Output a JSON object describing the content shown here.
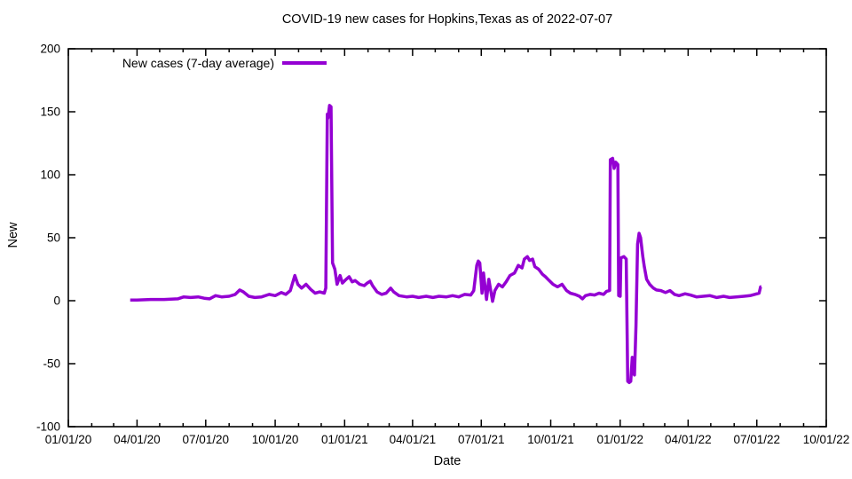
{
  "chart_data": {
    "type": "line",
    "title": "COVID-19 new cases for Hopkins,Texas as of 2022-07-07",
    "xlabel": "Date",
    "ylabel": "New",
    "ylim": [
      -100,
      200
    ],
    "xlim": [
      "01/01/20",
      "10/01/22"
    ],
    "yticks": [
      -100,
      -50,
      0,
      50,
      100,
      150,
      200
    ],
    "xticks": [
      "01/01/20",
      "04/01/20",
      "07/01/20",
      "10/01/20",
      "01/01/21",
      "04/01/21",
      "07/01/21",
      "10/01/21",
      "01/01/22",
      "04/01/22",
      "07/01/22",
      "10/01/22"
    ],
    "grid": false,
    "legend_position": "top-left-inside",
    "line_color": "#9400d3",
    "axis_color": "#000000",
    "background_color": "#ffffff",
    "series": [
      {
        "name": "New cases (7-day average)",
        "points": [
          [
            "2020-03-23",
            0.5
          ],
          [
            "2020-04-01",
            0.5
          ],
          [
            "2020-04-19",
            1
          ],
          [
            "2020-05-07",
            1
          ],
          [
            "2020-05-25",
            1.5
          ],
          [
            "2020-06-02",
            3
          ],
          [
            "2020-06-11",
            2.5
          ],
          [
            "2020-06-21",
            3
          ],
          [
            "2020-06-29",
            2
          ],
          [
            "2020-07-06",
            1.5
          ],
          [
            "2020-07-14",
            4
          ],
          [
            "2020-07-22",
            3
          ],
          [
            "2020-08-01",
            3.5
          ],
          [
            "2020-08-09",
            5
          ],
          [
            "2020-08-15",
            8.5
          ],
          [
            "2020-08-20",
            7
          ],
          [
            "2020-08-27",
            3.5
          ],
          [
            "2020-09-04",
            2.5
          ],
          [
            "2020-09-13",
            3
          ],
          [
            "2020-09-23",
            5
          ],
          [
            "2020-10-01",
            4
          ],
          [
            "2020-10-09",
            6.5
          ],
          [
            "2020-10-15",
            5
          ],
          [
            "2020-10-21",
            8
          ],
          [
            "2020-10-27",
            20
          ],
          [
            "2020-10-31",
            13
          ],
          [
            "2020-11-05",
            10
          ],
          [
            "2020-11-11",
            13
          ],
          [
            "2020-11-17",
            9
          ],
          [
            "2020-11-23",
            6
          ],
          [
            "2020-11-29",
            7
          ],
          [
            "2020-12-05",
            6
          ],
          [
            "2020-12-07",
            10
          ],
          [
            "2020-12-09",
            148
          ],
          [
            "2020-12-10",
            145
          ],
          [
            "2020-12-12",
            155
          ],
          [
            "2020-12-14",
            154
          ],
          [
            "2020-12-16",
            30
          ],
          [
            "2020-12-19",
            25
          ],
          [
            "2020-12-22",
            13
          ],
          [
            "2020-12-26",
            20
          ],
          [
            "2020-12-29",
            14
          ],
          [
            "2021-01-03",
            17
          ],
          [
            "2021-01-07",
            19
          ],
          [
            "2021-01-11",
            15
          ],
          [
            "2021-01-15",
            16
          ],
          [
            "2021-01-21",
            13
          ],
          [
            "2021-01-27",
            12
          ],
          [
            "2021-01-31",
            14
          ],
          [
            "2021-02-04",
            15.5
          ],
          [
            "2021-02-07",
            12
          ],
          [
            "2021-02-13",
            7
          ],
          [
            "2021-02-19",
            5
          ],
          [
            "2021-02-25",
            6
          ],
          [
            "2021-03-03",
            10
          ],
          [
            "2021-03-07",
            7
          ],
          [
            "2021-03-14",
            4
          ],
          [
            "2021-03-24",
            3
          ],
          [
            "2021-04-01",
            3.5
          ],
          [
            "2021-04-09",
            2.5
          ],
          [
            "2021-04-19",
            3.5
          ],
          [
            "2021-04-28",
            2.5
          ],
          [
            "2021-05-06",
            3.5
          ],
          [
            "2021-05-16",
            3
          ],
          [
            "2021-05-24",
            4
          ],
          [
            "2021-06-01",
            3
          ],
          [
            "2021-06-09",
            5
          ],
          [
            "2021-06-17",
            4.5
          ],
          [
            "2021-06-21",
            8
          ],
          [
            "2021-06-25",
            28
          ],
          [
            "2021-06-27",
            31.5
          ],
          [
            "2021-06-29",
            30
          ],
          [
            "2021-07-02",
            6
          ],
          [
            "2021-07-04",
            22
          ],
          [
            "2021-07-08",
            1
          ],
          [
            "2021-07-11",
            17
          ],
          [
            "2021-07-16",
            -0.5
          ],
          [
            "2021-07-19",
            8
          ],
          [
            "2021-07-24",
            13
          ],
          [
            "2021-07-29",
            11
          ],
          [
            "2021-08-03",
            15
          ],
          [
            "2021-08-08",
            20
          ],
          [
            "2021-08-14",
            22
          ],
          [
            "2021-08-19",
            28
          ],
          [
            "2021-08-24",
            26
          ],
          [
            "2021-08-27",
            33
          ],
          [
            "2021-08-31",
            35
          ],
          [
            "2021-09-03",
            32
          ],
          [
            "2021-09-07",
            33
          ],
          [
            "2021-09-10",
            27
          ],
          [
            "2021-09-15",
            25
          ],
          [
            "2021-09-20",
            21
          ],
          [
            "2021-09-24",
            19
          ],
          [
            "2021-09-29",
            16
          ],
          [
            "2021-10-04",
            13
          ],
          [
            "2021-10-10",
            11
          ],
          [
            "2021-10-16",
            13
          ],
          [
            "2021-10-22",
            8
          ],
          [
            "2021-10-27",
            6
          ],
          [
            "2021-11-02",
            5
          ],
          [
            "2021-11-08",
            3.5
          ],
          [
            "2021-11-12",
            1.5
          ],
          [
            "2021-11-16",
            4
          ],
          [
            "2021-11-22",
            5
          ],
          [
            "2021-11-28",
            4.5
          ],
          [
            "2021-12-04",
            6
          ],
          [
            "2021-12-10",
            5
          ],
          [
            "2021-12-14",
            7.5
          ],
          [
            "2021-12-18",
            8
          ],
          [
            "2021-12-19",
            112
          ],
          [
            "2021-12-22",
            113
          ],
          [
            "2021-12-24",
            105
          ],
          [
            "2021-12-26",
            110
          ],
          [
            "2021-12-29",
            108
          ],
          [
            "2021-12-30",
            4
          ],
          [
            "2022-01-01",
            3.5
          ],
          [
            "2022-01-02",
            34
          ],
          [
            "2022-01-06",
            35
          ],
          [
            "2022-01-09",
            33
          ],
          [
            "2022-01-11",
            -64
          ],
          [
            "2022-01-13",
            -65
          ],
          [
            "2022-01-15",
            -64
          ],
          [
            "2022-01-17",
            -45
          ],
          [
            "2022-01-18",
            -57
          ],
          [
            "2022-01-20",
            -59
          ],
          [
            "2022-01-22",
            -20
          ],
          [
            "2022-01-24",
            45
          ],
          [
            "2022-01-26",
            53.5
          ],
          [
            "2022-01-28",
            50
          ],
          [
            "2022-01-31",
            35
          ],
          [
            "2022-02-02",
            27
          ],
          [
            "2022-02-05",
            17
          ],
          [
            "2022-02-09",
            13
          ],
          [
            "2022-02-14",
            10
          ],
          [
            "2022-02-18",
            8.5
          ],
          [
            "2022-02-24",
            8
          ],
          [
            "2022-03-02",
            6.5
          ],
          [
            "2022-03-08",
            8
          ],
          [
            "2022-03-14",
            5
          ],
          [
            "2022-03-20",
            4
          ],
          [
            "2022-03-28",
            5.5
          ],
          [
            "2022-04-04",
            4.5
          ],
          [
            "2022-04-12",
            3
          ],
          [
            "2022-04-21",
            3.5
          ],
          [
            "2022-04-30",
            4
          ],
          [
            "2022-05-09",
            2.5
          ],
          [
            "2022-05-18",
            3.5
          ],
          [
            "2022-05-26",
            2.5
          ],
          [
            "2022-06-04",
            3
          ],
          [
            "2022-06-14",
            3.5
          ],
          [
            "2022-06-22",
            4
          ],
          [
            "2022-06-28",
            5
          ],
          [
            "2022-07-04",
            6
          ],
          [
            "2022-07-06",
            11
          ],
          [
            "2022-07-07",
            11
          ]
        ]
      }
    ]
  }
}
